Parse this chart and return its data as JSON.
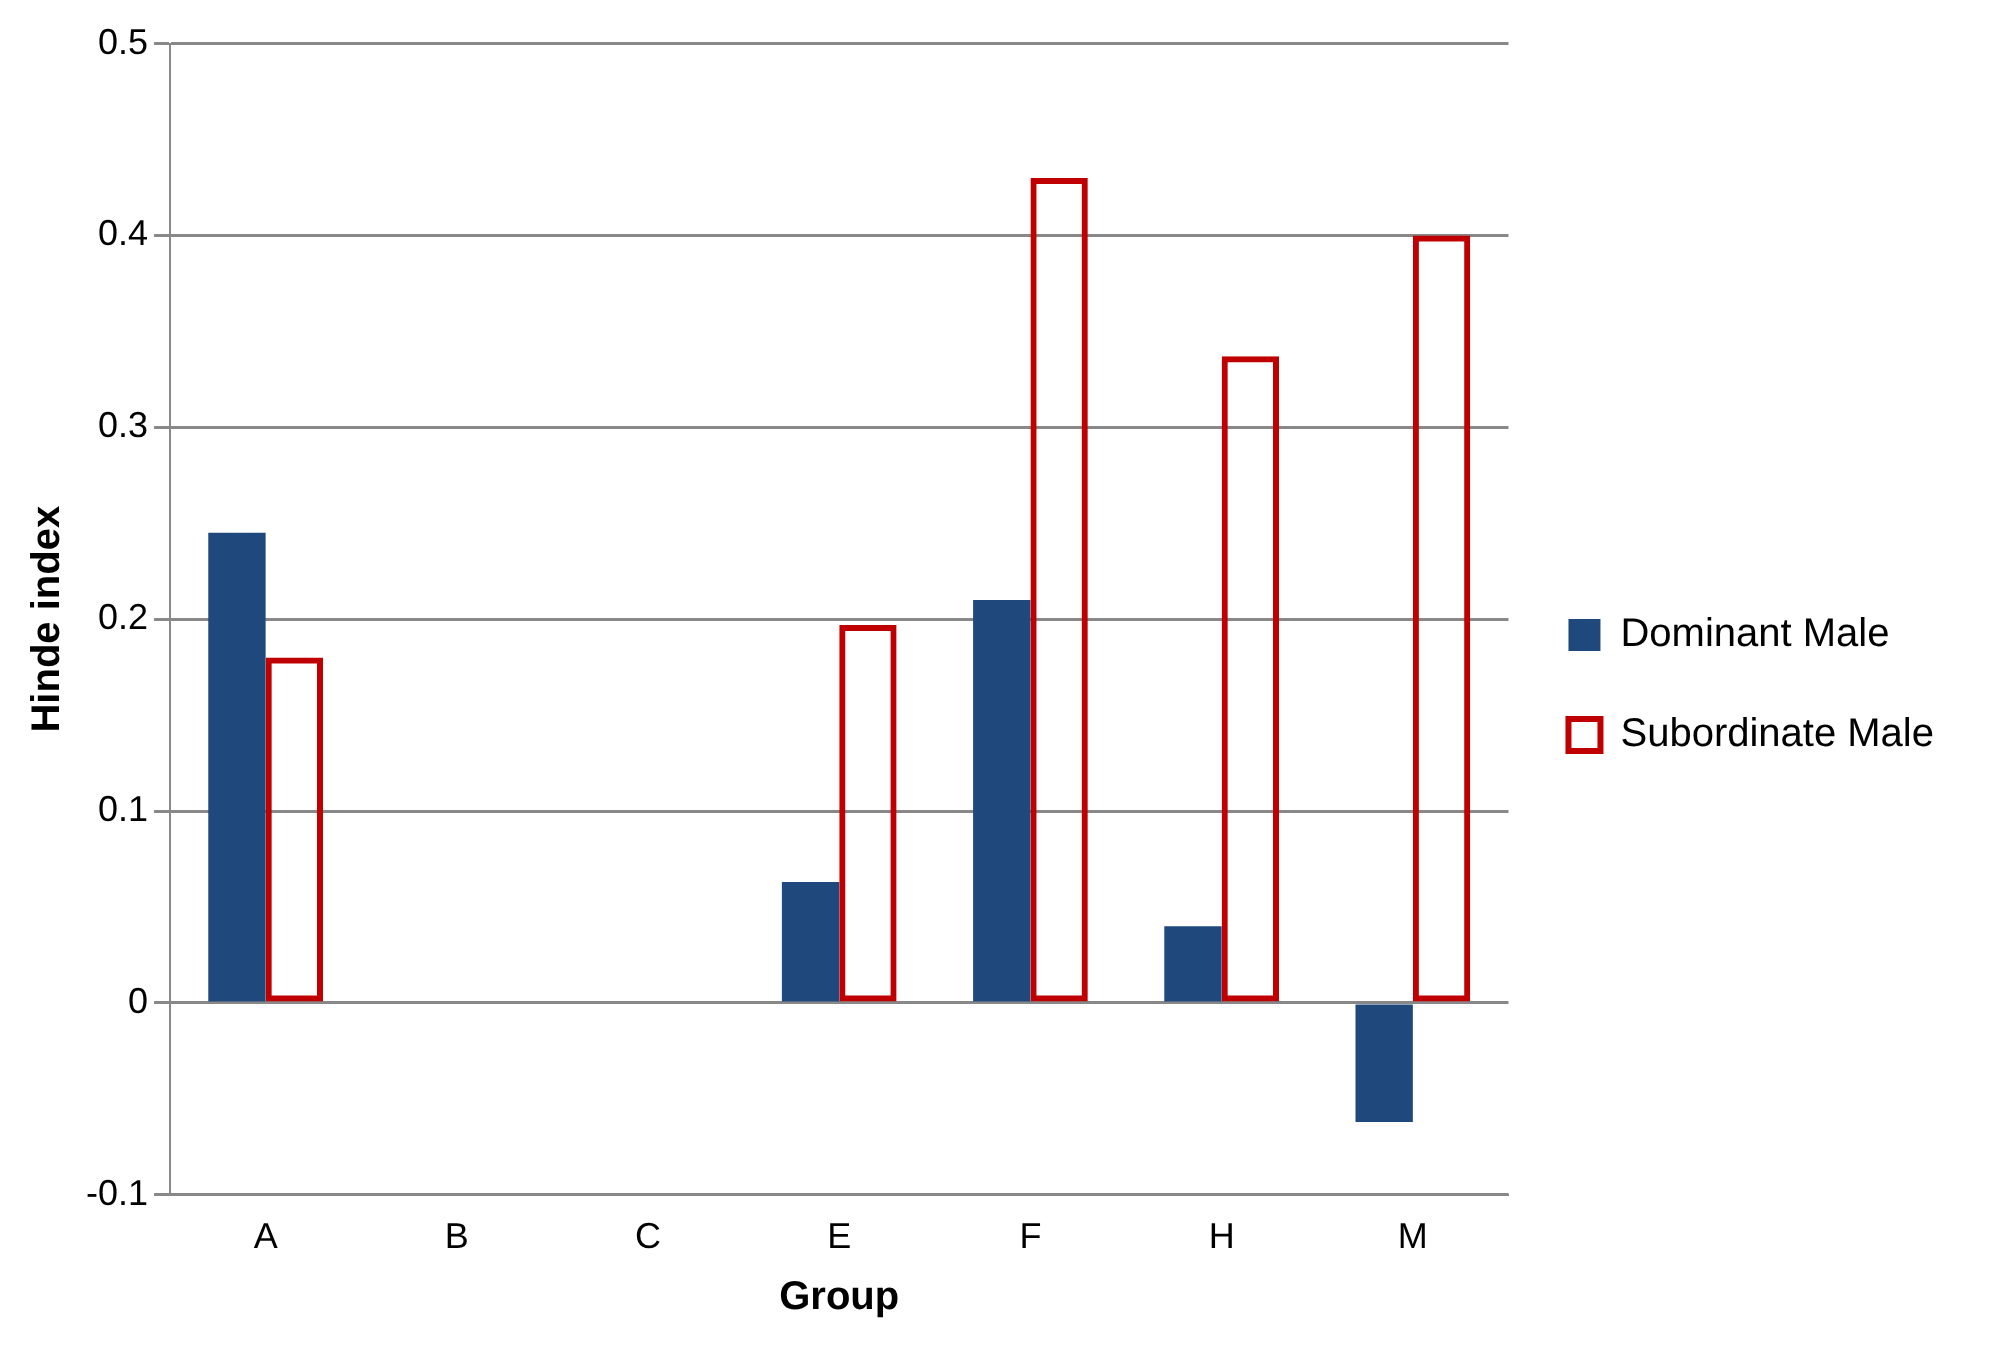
{
  "chart_data": {
    "type": "bar",
    "xlabel": "Group",
    "ylabel": "Hinde index",
    "categories": [
      "A",
      "B",
      "C",
      "E",
      "F",
      "H",
      "M"
    ],
    "series": [
      {
        "name": "Dominant Male",
        "color": "#1f497d",
        "values": [
          0.245,
          null,
          null,
          0.063,
          0.21,
          0.04,
          -0.062
        ]
      },
      {
        "name": "Subordinate Male",
        "color": "#c00000",
        "values": [
          0.18,
          null,
          null,
          0.197,
          0.43,
          0.337,
          0.4
        ]
      }
    ],
    "ylim": [
      -0.1,
      0.5
    ],
    "yticks": [
      -0.1,
      0,
      0.1,
      0.2,
      0.3,
      0.4,
      0.5
    ],
    "grid": "y",
    "legend": "right"
  }
}
